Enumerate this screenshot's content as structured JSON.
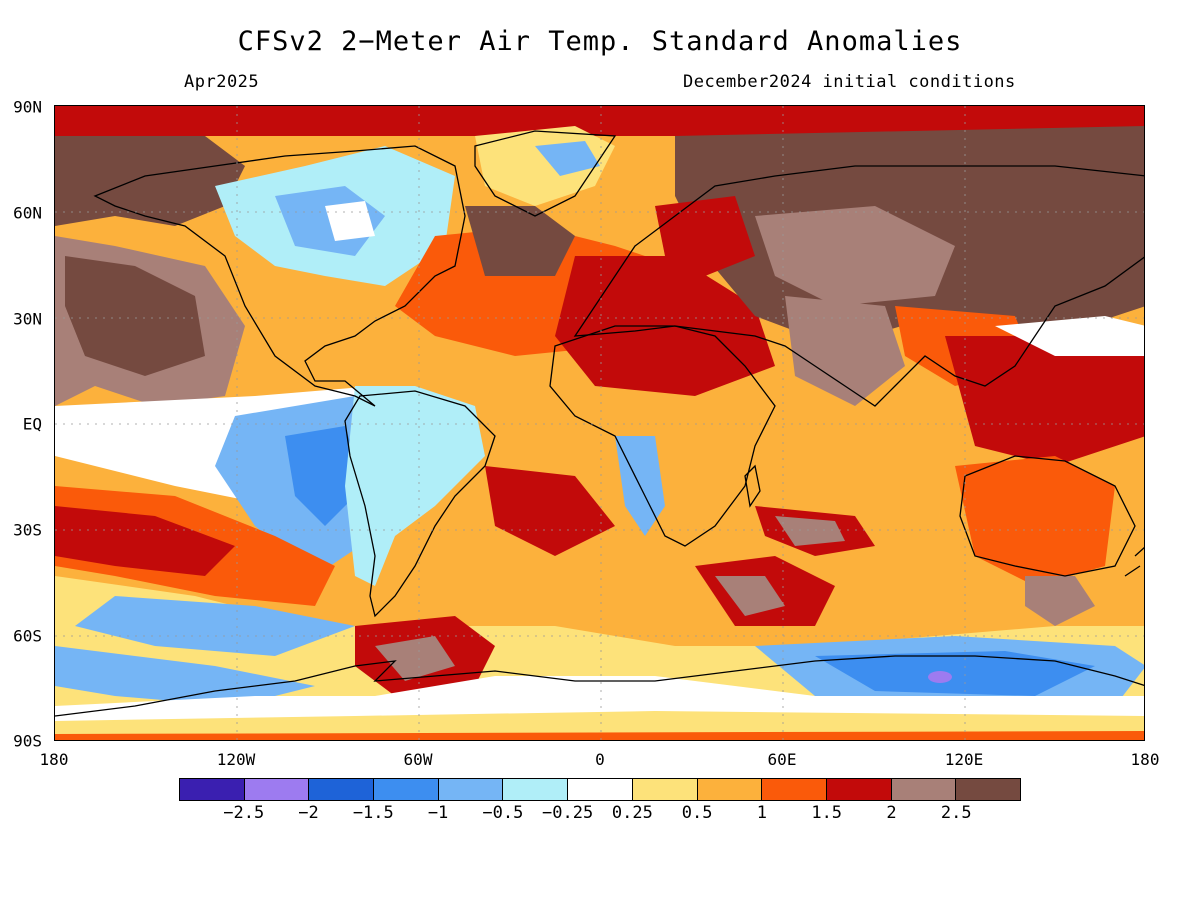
{
  "title": "CFSv2 2−Meter Air Temp. Standard Anomalies",
  "valid_month": "Apr2025",
  "initial_conditions": "December2024 initial conditions",
  "lat_labels": [
    "90N",
    "60N",
    "30N",
    "EQ",
    "30S",
    "60S",
    "90S"
  ],
  "lon_labels": [
    "180",
    "120W",
    "60W",
    "0",
    "60E",
    "120E",
    "180"
  ],
  "colorbar": {
    "colors": [
      "#3a1fb0",
      "#9d7bf0",
      "#1e63d8",
      "#3d8ef0",
      "#75b5f5",
      "#b0eef8",
      "#ffffff",
      "#fde27a",
      "#fcb13c",
      "#fa5a0a",
      "#c20a0a",
      "#a88078",
      "#754a40"
    ],
    "labels": [
      "−2.5",
      "−2",
      "−1.5",
      "−1",
      "−0.5",
      "−0.25",
      "0.25",
      "0.5",
      "1",
      "1.5",
      "2",
      "2.5"
    ]
  }
}
